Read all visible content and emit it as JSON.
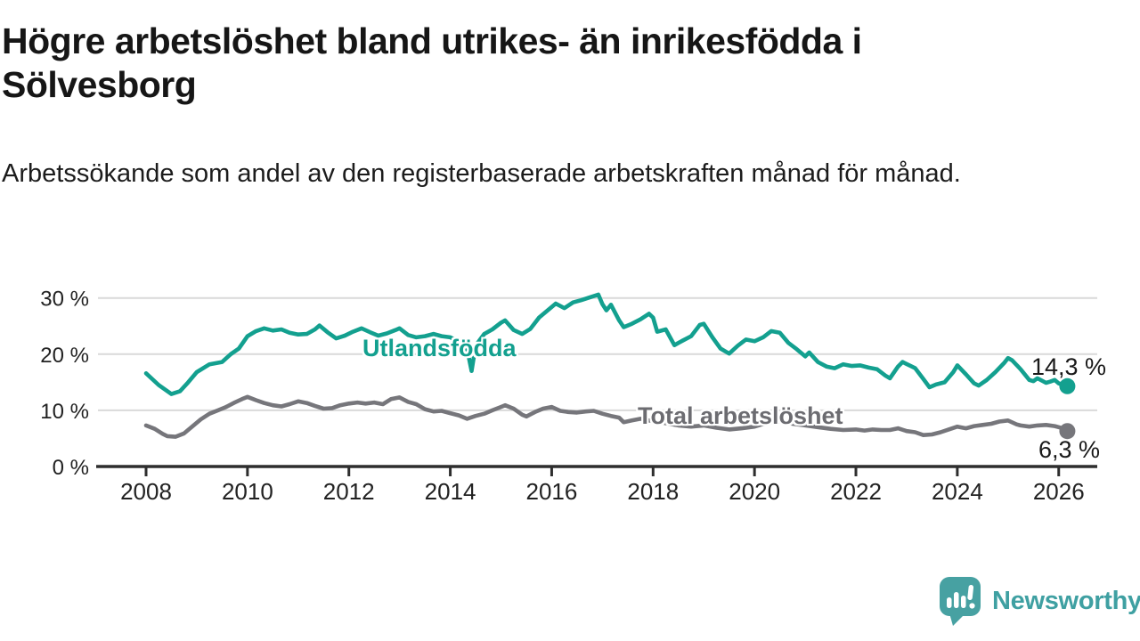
{
  "header": {
    "title": "Högre arbetslöshet bland utrikes- än inrikesfödda i Sölvesborg",
    "title_lines": [
      "Högre arbetslöshet bland utrikes- än inrikesfödda i",
      "Sölvesborg"
    ],
    "subtitle": "Arbetssökande som andel av den registerbaserade arbetskraften månad för månad."
  },
  "branding": {
    "logo_text": "Newsworthy",
    "logo_icon": "bar-chart-speech-bubble-icon",
    "logo_color": "#47a1a2"
  },
  "chart_data": {
    "type": "line",
    "title": "",
    "xlabel": "",
    "ylabel": "",
    "x_unit": "year, monthly observations",
    "xlim": [
      2007.05,
      2026.75
    ],
    "ylim": [
      0,
      32
    ],
    "grid": "horizontal",
    "legend_position": "inline-labels",
    "yticks": [
      {
        "value": 0,
        "label": "0 %"
      },
      {
        "value": 10,
        "label": "10 %"
      },
      {
        "value": 20,
        "label": "20 %"
      },
      {
        "value": 30,
        "label": "30 %"
      }
    ],
    "xticks": [
      {
        "value": 2008,
        "label": "2008"
      },
      {
        "value": 2010,
        "label": "2010"
      },
      {
        "value": 2012,
        "label": "2012"
      },
      {
        "value": 2014,
        "label": "2014"
      },
      {
        "value": 2016,
        "label": "2016"
      },
      {
        "value": 2018,
        "label": "2018"
      },
      {
        "value": 2020,
        "label": "2020"
      },
      {
        "value": 2022,
        "label": "2022"
      },
      {
        "value": 2024,
        "label": "2024"
      },
      {
        "value": 2026,
        "label": "2026"
      }
    ],
    "series": [
      {
        "name": "Utlandsfödda",
        "color": "#13a08f",
        "end_value": 14.3,
        "end_label": "14,3 %",
        "points": [
          [
            2008.0,
            16.6
          ],
          [
            2008.25,
            14.5
          ],
          [
            2008.5,
            12.9
          ],
          [
            2008.67,
            13.4
          ],
          [
            2008.83,
            15.0
          ],
          [
            2009.0,
            16.8
          ],
          [
            2009.25,
            18.2
          ],
          [
            2009.5,
            18.6
          ],
          [
            2009.67,
            20.0
          ],
          [
            2009.83,
            21.0
          ],
          [
            2010.0,
            23.2
          ],
          [
            2010.17,
            24.1
          ],
          [
            2010.33,
            24.6
          ],
          [
            2010.5,
            24.2
          ],
          [
            2010.67,
            24.4
          ],
          [
            2010.83,
            23.8
          ],
          [
            2011.0,
            23.5
          ],
          [
            2011.17,
            23.6
          ],
          [
            2011.33,
            24.4
          ],
          [
            2011.42,
            25.1
          ],
          [
            2011.58,
            23.9
          ],
          [
            2011.75,
            22.8
          ],
          [
            2011.92,
            23.3
          ],
          [
            2012.08,
            24.0
          ],
          [
            2012.25,
            24.6
          ],
          [
            2012.42,
            23.9
          ],
          [
            2012.58,
            23.3
          ],
          [
            2012.75,
            23.7
          ],
          [
            2012.92,
            24.3
          ],
          [
            2013.0,
            24.6
          ],
          [
            2013.17,
            23.4
          ],
          [
            2013.33,
            23.0
          ],
          [
            2013.5,
            23.2
          ],
          [
            2013.67,
            23.6
          ],
          [
            2013.83,
            23.2
          ],
          [
            2014.0,
            23.0
          ],
          [
            2014.17,
            22.2
          ],
          [
            2014.33,
            21.0
          ],
          [
            2014.42,
            17.0
          ],
          [
            2014.5,
            21.5
          ],
          [
            2014.67,
            23.6
          ],
          [
            2014.83,
            24.4
          ],
          [
            2015.0,
            25.6
          ],
          [
            2015.08,
            26.0
          ],
          [
            2015.25,
            24.3
          ],
          [
            2015.42,
            23.6
          ],
          [
            2015.58,
            24.5
          ],
          [
            2015.75,
            26.5
          ],
          [
            2015.92,
            27.8
          ],
          [
            2016.08,
            29.0
          ],
          [
            2016.25,
            28.2
          ],
          [
            2016.42,
            29.2
          ],
          [
            2016.58,
            29.6
          ],
          [
            2016.75,
            30.1
          ],
          [
            2016.92,
            30.6
          ],
          [
            2017.0,
            28.9
          ],
          [
            2017.08,
            27.8
          ],
          [
            2017.17,
            28.8
          ],
          [
            2017.33,
            26.0
          ],
          [
            2017.42,
            24.8
          ],
          [
            2017.58,
            25.4
          ],
          [
            2017.75,
            26.2
          ],
          [
            2017.92,
            27.2
          ],
          [
            2018.0,
            26.5
          ],
          [
            2018.08,
            24.0
          ],
          [
            2018.25,
            24.4
          ],
          [
            2018.42,
            21.6
          ],
          [
            2018.58,
            22.4
          ],
          [
            2018.75,
            23.2
          ],
          [
            2018.92,
            25.2
          ],
          [
            2019.0,
            25.4
          ],
          [
            2019.17,
            23.0
          ],
          [
            2019.33,
            21.0
          ],
          [
            2019.5,
            20.1
          ],
          [
            2019.67,
            21.5
          ],
          [
            2019.83,
            22.6
          ],
          [
            2020.0,
            22.3
          ],
          [
            2020.17,
            23.0
          ],
          [
            2020.33,
            24.1
          ],
          [
            2020.5,
            23.8
          ],
          [
            2020.67,
            22.0
          ],
          [
            2020.83,
            20.9
          ],
          [
            2021.0,
            19.6
          ],
          [
            2021.08,
            20.3
          ],
          [
            2021.25,
            18.6
          ],
          [
            2021.42,
            17.8
          ],
          [
            2021.58,
            17.5
          ],
          [
            2021.75,
            18.2
          ],
          [
            2021.92,
            17.9
          ],
          [
            2022.08,
            18.0
          ],
          [
            2022.25,
            17.6
          ],
          [
            2022.42,
            17.3
          ],
          [
            2022.58,
            16.2
          ],
          [
            2022.67,
            15.7
          ],
          [
            2022.83,
            17.8
          ],
          [
            2022.92,
            18.6
          ],
          [
            2023.08,
            17.9
          ],
          [
            2023.17,
            17.5
          ],
          [
            2023.33,
            15.6
          ],
          [
            2023.45,
            14.1
          ],
          [
            2023.58,
            14.6
          ],
          [
            2023.75,
            15.0
          ],
          [
            2023.92,
            16.8
          ],
          [
            2024.0,
            18.0
          ],
          [
            2024.17,
            16.4
          ],
          [
            2024.33,
            14.8
          ],
          [
            2024.42,
            14.4
          ],
          [
            2024.58,
            15.4
          ],
          [
            2024.75,
            16.8
          ],
          [
            2024.92,
            18.4
          ],
          [
            2025.0,
            19.3
          ],
          [
            2025.08,
            18.9
          ],
          [
            2025.25,
            17.3
          ],
          [
            2025.42,
            15.4
          ],
          [
            2025.5,
            15.2
          ],
          [
            2025.58,
            15.7
          ],
          [
            2025.75,
            14.9
          ],
          [
            2025.83,
            15.1
          ],
          [
            2025.92,
            15.4
          ],
          [
            2026.0,
            14.8
          ],
          [
            2026.08,
            14.6
          ],
          [
            2026.17,
            14.3
          ]
        ]
      },
      {
        "name": "Total arbetslöshet",
        "color": "#76767b",
        "end_value": 6.3,
        "end_label": "6,3 %",
        "points": [
          [
            2008.0,
            7.3
          ],
          [
            2008.17,
            6.7
          ],
          [
            2008.33,
            5.8
          ],
          [
            2008.42,
            5.4
          ],
          [
            2008.58,
            5.3
          ],
          [
            2008.75,
            5.9
          ],
          [
            2008.92,
            7.2
          ],
          [
            2009.08,
            8.4
          ],
          [
            2009.25,
            9.4
          ],
          [
            2009.42,
            10.0
          ],
          [
            2009.58,
            10.6
          ],
          [
            2009.75,
            11.4
          ],
          [
            2009.92,
            12.1
          ],
          [
            2010.0,
            12.4
          ],
          [
            2010.17,
            11.8
          ],
          [
            2010.33,
            11.3
          ],
          [
            2010.5,
            10.9
          ],
          [
            2010.67,
            10.7
          ],
          [
            2010.83,
            11.1
          ],
          [
            2011.0,
            11.6
          ],
          [
            2011.17,
            11.3
          ],
          [
            2011.33,
            10.8
          ],
          [
            2011.5,
            10.3
          ],
          [
            2011.67,
            10.4
          ],
          [
            2011.83,
            10.9
          ],
          [
            2012.0,
            11.2
          ],
          [
            2012.17,
            11.4
          ],
          [
            2012.33,
            11.2
          ],
          [
            2012.5,
            11.4
          ],
          [
            2012.67,
            11.1
          ],
          [
            2012.83,
            12.0
          ],
          [
            2013.0,
            12.3
          ],
          [
            2013.17,
            11.5
          ],
          [
            2013.33,
            11.1
          ],
          [
            2013.5,
            10.2
          ],
          [
            2013.67,
            9.8
          ],
          [
            2013.83,
            9.9
          ],
          [
            2014.0,
            9.5
          ],
          [
            2014.17,
            9.1
          ],
          [
            2014.33,
            8.5
          ],
          [
            2014.5,
            9.0
          ],
          [
            2014.67,
            9.4
          ],
          [
            2014.83,
            10.0
          ],
          [
            2015.0,
            10.6
          ],
          [
            2015.08,
            10.9
          ],
          [
            2015.25,
            10.3
          ],
          [
            2015.42,
            9.2
          ],
          [
            2015.5,
            8.9
          ],
          [
            2015.67,
            9.7
          ],
          [
            2015.83,
            10.3
          ],
          [
            2016.0,
            10.6
          ],
          [
            2016.17,
            9.9
          ],
          [
            2016.33,
            9.7
          ],
          [
            2016.5,
            9.6
          ],
          [
            2016.67,
            9.8
          ],
          [
            2016.83,
            9.9
          ],
          [
            2017.0,
            9.4
          ],
          [
            2017.17,
            9.0
          ],
          [
            2017.33,
            8.7
          ],
          [
            2017.42,
            7.9
          ],
          [
            2017.58,
            8.2
          ],
          [
            2017.75,
            8.5
          ],
          [
            2017.92,
            8.2
          ],
          [
            2018.08,
            8.0
          ],
          [
            2018.25,
            7.7
          ],
          [
            2018.5,
            7.3
          ],
          [
            2018.75,
            7.1
          ],
          [
            2019.0,
            7.3
          ],
          [
            2019.25,
            6.9
          ],
          [
            2019.5,
            6.6
          ],
          [
            2019.75,
            6.8
          ],
          [
            2020.0,
            7.1
          ],
          [
            2020.25,
            7.8
          ],
          [
            2020.5,
            8.0
          ],
          [
            2020.75,
            7.6
          ],
          [
            2021.0,
            7.3
          ],
          [
            2021.25,
            7.0
          ],
          [
            2021.5,
            6.7
          ],
          [
            2021.75,
            6.5
          ],
          [
            2022.0,
            6.6
          ],
          [
            2022.17,
            6.4
          ],
          [
            2022.33,
            6.6
          ],
          [
            2022.5,
            6.5
          ],
          [
            2022.67,
            6.5
          ],
          [
            2022.83,
            6.8
          ],
          [
            2023.0,
            6.3
          ],
          [
            2023.17,
            6.1
          ],
          [
            2023.33,
            5.6
          ],
          [
            2023.5,
            5.7
          ],
          [
            2023.67,
            6.1
          ],
          [
            2023.83,
            6.6
          ],
          [
            2024.0,
            7.1
          ],
          [
            2024.17,
            6.8
          ],
          [
            2024.33,
            7.2
          ],
          [
            2024.5,
            7.4
          ],
          [
            2024.67,
            7.6
          ],
          [
            2024.83,
            8.0
          ],
          [
            2025.0,
            8.2
          ],
          [
            2025.17,
            7.5
          ],
          [
            2025.25,
            7.3
          ],
          [
            2025.42,
            7.1
          ],
          [
            2025.58,
            7.3
          ],
          [
            2025.75,
            7.4
          ],
          [
            2025.92,
            7.2
          ],
          [
            2026.0,
            7.0
          ],
          [
            2026.08,
            6.8
          ],
          [
            2026.17,
            6.3
          ]
        ]
      }
    ],
    "style_colors": {
      "grid": "#d9d9d9",
      "axis": "#2e2e2e",
      "tick_text": "#222222"
    }
  }
}
